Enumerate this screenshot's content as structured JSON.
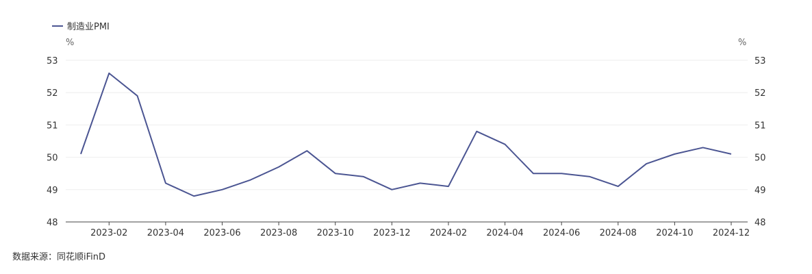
{
  "chart_data": {
    "type": "line",
    "legend": {
      "label": "制造业PMI",
      "position": "top-left"
    },
    "units": {
      "left": "%",
      "right": "%"
    },
    "x": [
      "2023-01",
      "2023-02",
      "2023-03",
      "2023-04",
      "2023-05",
      "2023-06",
      "2023-07",
      "2023-08",
      "2023-09",
      "2023-10",
      "2023-11",
      "2023-12",
      "2024-01",
      "2024-02",
      "2024-03",
      "2024-04",
      "2024-05",
      "2024-06",
      "2024-07",
      "2024-08",
      "2024-09",
      "2024-10",
      "2024-11",
      "2024-12"
    ],
    "x_tick_labels": [
      "2023-02",
      "2023-04",
      "2023-06",
      "2023-08",
      "2023-10",
      "2023-12",
      "2024-02",
      "2024-04",
      "2024-06",
      "2024-08",
      "2024-10",
      "2024-12"
    ],
    "series": [
      {
        "name": "制造业PMI",
        "color": "#4b5592",
        "values": [
          50.1,
          52.6,
          51.9,
          49.2,
          48.8,
          49.0,
          49.3,
          49.7,
          50.2,
          49.5,
          49.4,
          49.0,
          49.2,
          49.1,
          50.8,
          50.4,
          49.5,
          49.5,
          49.4,
          49.1,
          49.8,
          50.1,
          50.3,
          50.1
        ]
      }
    ],
    "y_ticks": [
      48,
      49,
      50,
      51,
      52,
      53
    ],
    "ylim": [
      48,
      53
    ],
    "grid": true,
    "dual_axis_mirrored": true
  },
  "source_text": "数据来源：同花顺iFinD"
}
